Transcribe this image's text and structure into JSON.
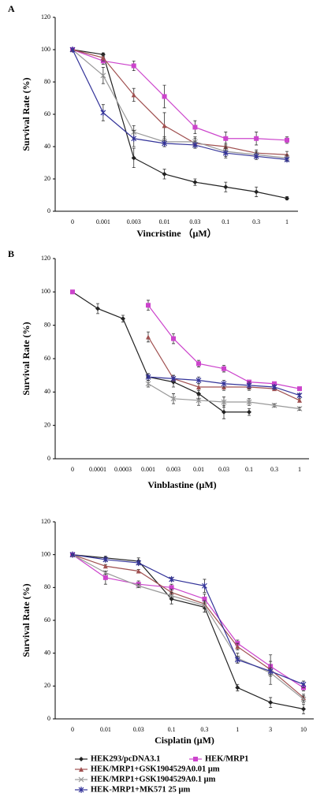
{
  "chart_data": [
    {
      "type": "line",
      "label": "A",
      "xlabel": "Vincristine （μM）",
      "ylabel": "Survival Rate (%)",
      "categories": [
        "0",
        "0.001",
        "0.003",
        "0.01",
        "0.03",
        "0.1",
        "0.3",
        "1"
      ],
      "ylim": [
        0,
        120
      ],
      "yticks": [
        0,
        20,
        40,
        60,
        80,
        100,
        120
      ],
      "series": [
        {
          "color": "#222222",
          "marker": "diamond",
          "values": [
            100,
            97,
            33,
            23,
            18,
            15,
            12,
            8
          ],
          "errors": [
            0,
            1,
            6,
            3,
            2,
            3,
            3,
            1
          ]
        },
        {
          "color": "#cc44cc",
          "marker": "square",
          "values": [
            100,
            93,
            90,
            71,
            52,
            45,
            45,
            44
          ],
          "errors": [
            0,
            2,
            3,
            7,
            4,
            4,
            4,
            2
          ]
        },
        {
          "color": "#a05050",
          "marker": "triangle",
          "values": [
            100,
            95,
            72,
            53,
            42,
            40,
            36,
            35
          ],
          "errors": [
            0,
            2,
            4,
            8,
            3,
            2,
            2,
            2
          ]
        },
        {
          "color": "#999999",
          "marker": "cross",
          "values": [
            100,
            84,
            49,
            43,
            43,
            37,
            35,
            33
          ],
          "errors": [
            0,
            5,
            4,
            3,
            3,
            3,
            2,
            2
          ]
        },
        {
          "color": "#333399",
          "marker": "star",
          "values": [
            100,
            61,
            45,
            42,
            41,
            36,
            34,
            32
          ],
          "errors": [
            0,
            5,
            5,
            2,
            2,
            3,
            2,
            1
          ]
        }
      ]
    },
    {
      "type": "line",
      "label": "B",
      "xlabel": "Vinblastine (μM)",
      "ylabel": "Survival Rate (%)",
      "categories": [
        "0",
        "0.0001",
        "0.0003",
        "0.001",
        "0.003",
        "0.01",
        "0.03",
        "0.1",
        "0.3",
        "1"
      ],
      "ylim": [
        0,
        120
      ],
      "yticks": [
        0,
        20,
        40,
        60,
        80,
        100,
        120
      ],
      "series": [
        {
          "color": "#222222",
          "marker": "diamond",
          "values": [
            100,
            90,
            84,
            49,
            46,
            39,
            28,
            28,
            null,
            null
          ],
          "errors": [
            0,
            3,
            2,
            2,
            3,
            3,
            4,
            2,
            null,
            null
          ]
        },
        {
          "color": "#cc44cc",
          "marker": "square",
          "values": [
            100,
            null,
            null,
            92,
            72,
            57,
            54,
            46,
            45,
            42
          ],
          "errors": [
            0,
            null,
            null,
            3,
            3,
            2,
            2,
            1,
            1,
            1
          ]
        },
        {
          "color": "#a05050",
          "marker": "triangle",
          "values": [
            null,
            null,
            null,
            73,
            48,
            43,
            43,
            43,
            42,
            35
          ],
          "errors": [
            null,
            null,
            null,
            3,
            2,
            2,
            2,
            2,
            1,
            1
          ]
        },
        {
          "color": "#999999",
          "marker": "cross",
          "values": [
            null,
            null,
            null,
            45,
            36,
            35,
            34,
            34,
            32,
            30
          ],
          "errors": [
            null,
            null,
            null,
            2,
            3,
            3,
            3,
            2,
            1,
            1
          ]
        },
        {
          "color": "#333399",
          "marker": "star",
          "values": [
            null,
            null,
            null,
            49,
            48,
            47,
            45,
            44,
            43,
            38
          ],
          "errors": [
            null,
            null,
            null,
            2,
            2,
            2,
            2,
            2,
            1,
            1
          ]
        }
      ]
    },
    {
      "type": "line",
      "xlabel": "Cisplatin (μM)",
      "ylabel": "Survival Rate (%)",
      "categories": [
        "0",
        "0.01",
        "0.03",
        "0.1",
        "0.3",
        "1",
        "3",
        "10"
      ],
      "ylim": [
        0,
        120
      ],
      "yticks": [
        0,
        20,
        40,
        60,
        80,
        100,
        120
      ],
      "series": [
        {
          "name": "HEK293/pcDNA3.1",
          "color": "#222222",
          "marker": "diamond",
          "values": [
            100,
            98,
            96,
            73,
            68,
            19,
            10,
            6
          ],
          "errors": [
            0,
            1,
            2,
            3,
            3,
            2,
            3,
            3
          ]
        },
        {
          "name": "HEK/MRP1",
          "color": "#cc44cc",
          "marker": "square",
          "values": [
            100,
            86,
            82,
            80,
            73,
            46,
            32,
            19
          ],
          "errors": [
            0,
            4,
            2,
            2,
            3,
            2,
            3,
            2
          ]
        },
        {
          "name": "HEK/MRP1+GSK1904529A0.01 μm",
          "color": "#a05050",
          "marker": "triangle",
          "values": [
            100,
            93,
            90,
            77,
            70,
            44,
            30,
            13
          ],
          "errors": [
            0,
            1,
            1,
            2,
            2,
            2,
            9,
            2
          ]
        },
        {
          "name": "HEK/MRP1+GSK1904529A0.1 μm",
          "color": "#999999",
          "marker": "cross",
          "values": [
            100,
            89,
            81,
            75,
            69,
            37,
            28,
            12
          ],
          "errors": [
            0,
            1,
            1,
            2,
            2,
            3,
            2,
            2
          ]
        },
        {
          "name": "HEK-MRP1+MK571 25 μm",
          "color": "#333399",
          "marker": "star",
          "values": [
            100,
            97,
            95,
            85,
            81,
            36,
            29,
            21
          ],
          "errors": [
            0,
            1,
            1,
            1,
            4,
            2,
            2,
            2
          ]
        }
      ]
    }
  ]
}
